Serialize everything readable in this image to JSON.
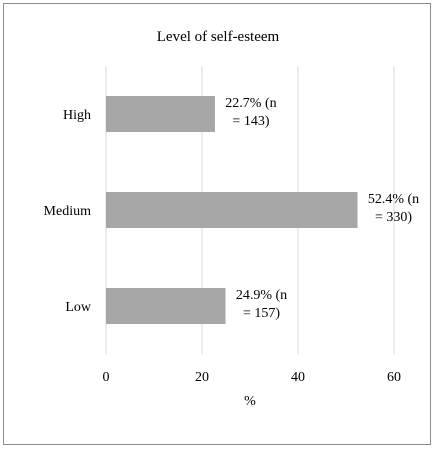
{
  "chart_data": {
    "type": "bar",
    "orientation": "horizontal",
    "title": "Level of self-esteem",
    "xlabel": "%",
    "ylabel": "",
    "categories": [
      "High",
      "Medium",
      "Low"
    ],
    "values": [
      22.7,
      52.4,
      24.9
    ],
    "data_labels": [
      [
        "22.7%  (n",
        "= 143)"
      ],
      [
        "52.4%  (n",
        "= 330)"
      ],
      [
        "24.9%  (n",
        "= 157)"
      ]
    ],
    "xlim": [
      0,
      60
    ],
    "xticks": [
      0,
      20,
      40,
      60
    ],
    "grid": "vertical",
    "legend": "none",
    "bar_color": "#a6a6a6",
    "grid_color": "#d9d9d9"
  }
}
